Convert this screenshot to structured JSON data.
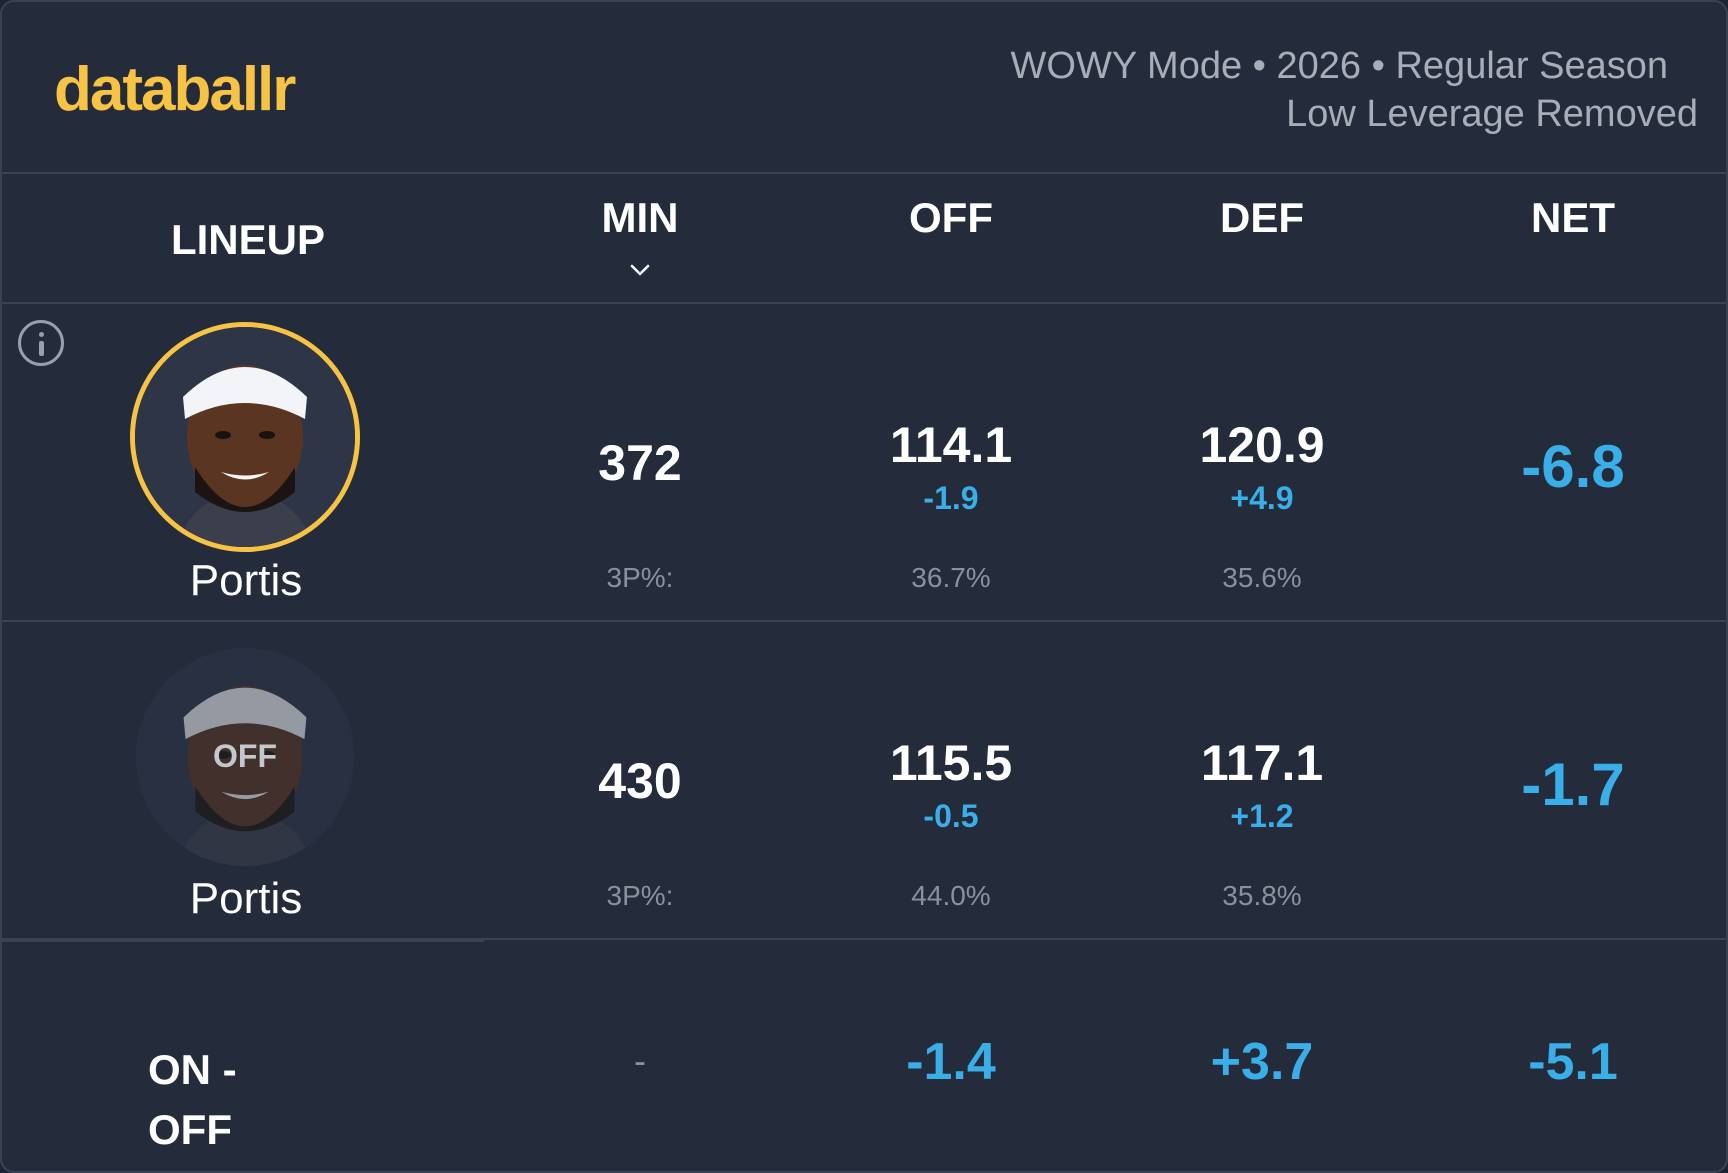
{
  "header": {
    "logo": "databallr",
    "subtitle_line1": "WOWY Mode • 2026 • Regular Season",
    "subtitle_line2": "Low Leverage Removed"
  },
  "columns": {
    "lineup": "LINEUP",
    "min": "MIN",
    "off": "OFF",
    "def": "DEF",
    "net": "NET"
  },
  "rows": [
    {
      "player_name": "Portis",
      "status": "on",
      "min": "372",
      "off": "114.1",
      "off_delta": "-1.9",
      "def": "120.9",
      "def_delta": "+4.9",
      "net": "-6.8",
      "tp_label": "3P%:",
      "off_tp": "36.7%",
      "def_tp": "35.6%"
    },
    {
      "player_name": "Portis",
      "status": "off",
      "off_badge": "OFF",
      "min": "430",
      "off": "115.5",
      "off_delta": "-0.5",
      "def": "117.1",
      "def_delta": "+1.2",
      "net": "-1.7",
      "tp_label": "3P%:",
      "off_tp": "44.0%",
      "def_tp": "35.8%"
    }
  ],
  "on_off": {
    "label_line1": "ON -",
    "label_line2": "OFF",
    "min": "-",
    "off": "-1.4",
    "def": "+3.7",
    "net": "-5.1"
  },
  "colors": {
    "accent": "#f6c344",
    "delta_blue": "#3aaee8",
    "background": "#242b3a"
  },
  "icons": {
    "sort": "chevron-down-icon",
    "info": "info-icon"
  }
}
